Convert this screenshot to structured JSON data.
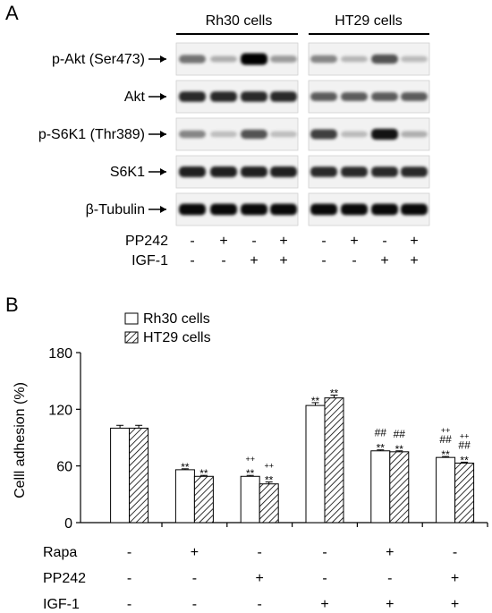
{
  "panel_a": {
    "label": "A",
    "groups": [
      "Rh30 cells",
      "HT29  cells"
    ],
    "rows": [
      {
        "label": "p-Akt (Ser473)",
        "intensities": [
          [
            0.45,
            0.15,
            1.0,
            0.25
          ],
          [
            0.35,
            0.12,
            0.6,
            0.1
          ]
        ]
      },
      {
        "label": "Akt",
        "intensities": [
          [
            0.8,
            0.8,
            0.8,
            0.8
          ],
          [
            0.55,
            0.55,
            0.55,
            0.55
          ]
        ]
      },
      {
        "label": "p-S6K1 (Thr389)",
        "intensities": [
          [
            0.35,
            0.08,
            0.6,
            0.08
          ],
          [
            0.7,
            0.1,
            0.9,
            0.15
          ]
        ]
      },
      {
        "label": "S6K1",
        "intensities": [
          [
            0.85,
            0.85,
            0.85,
            0.85
          ],
          [
            0.8,
            0.8,
            0.8,
            0.8
          ]
        ]
      },
      {
        "label": "β-Tubulin",
        "intensities": [
          [
            0.95,
            0.95,
            0.95,
            0.95
          ],
          [
            0.95,
            0.95,
            0.95,
            0.95
          ]
        ]
      }
    ],
    "treatments": [
      {
        "label": "PP242",
        "signs": [
          "-",
          "+",
          "-",
          "+",
          "-",
          "+",
          "-",
          "+"
        ]
      },
      {
        "label": "IGF-1",
        "signs": [
          "-",
          "-",
          "+",
          "+",
          "-",
          "-",
          "+",
          "+"
        ]
      }
    ]
  },
  "panel_b": {
    "label": "B",
    "treatments": [
      {
        "label": "Rapa",
        "signs": [
          "-",
          "+",
          "-",
          "-",
          "+",
          "-"
        ]
      },
      {
        "label": "PP242",
        "signs": [
          "-",
          "-",
          "+",
          "-",
          "-",
          "+"
        ]
      },
      {
        "label": "IGF-1",
        "signs": [
          "-",
          "-",
          "-",
          "+",
          "+",
          "+"
        ]
      }
    ]
  },
  "chart_data": {
    "type": "bar",
    "ylabel": "Celll adhesion (%)",
    "ylim": [
      0,
      180
    ],
    "yticks": [
      "0",
      "60",
      "120",
      "180"
    ],
    "legend_placement": "top-left",
    "series": [
      {
        "name": "Rh30 cells",
        "fill": "white",
        "values": [
          100,
          56,
          49,
          124,
          76,
          69
        ],
        "errors": [
          3,
          1,
          1,
          3,
          1,
          1
        ],
        "annotations": [
          [],
          [
            "**"
          ],
          [
            "++",
            "**"
          ],
          [
            "**"
          ],
          [
            "##",
            "**"
          ],
          [
            "++",
            "##",
            "**"
          ]
        ]
      },
      {
        "name": "HT29 cells",
        "fill": "hatched",
        "values": [
          100,
          49,
          41,
          132,
          75,
          63
        ],
        "errors": [
          3,
          1,
          2,
          3,
          1,
          1
        ],
        "annotations": [
          [],
          [
            "**"
          ],
          [
            "++",
            "**"
          ],
          [
            "**"
          ],
          [
            "##",
            "**"
          ],
          [
            "++",
            "##",
            "**"
          ]
        ]
      }
    ]
  }
}
